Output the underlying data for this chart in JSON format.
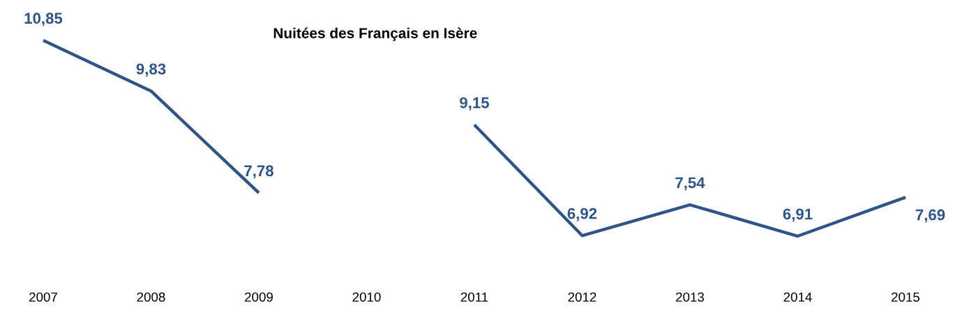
{
  "chart_data": {
    "type": "line",
    "title": "Nuitées des Français en Isère",
    "categories": [
      "2007",
      "2008",
      "2009",
      "2010",
      "2011",
      "2012",
      "2013",
      "2014",
      "2015"
    ],
    "series": [
      {
        "color": "#2f5488",
        "values": [
          10.85,
          9.83,
          7.78,
          null,
          9.15,
          6.92,
          7.54,
          6.91,
          7.69
        ],
        "value_labels": [
          "10,85",
          "9,83",
          "7,78",
          null,
          "9,15",
          "6,92",
          "7,54",
          "6,91",
          "7,69"
        ]
      }
    ],
    "grid": false,
    "marker": "none",
    "line_style": "solid"
  }
}
